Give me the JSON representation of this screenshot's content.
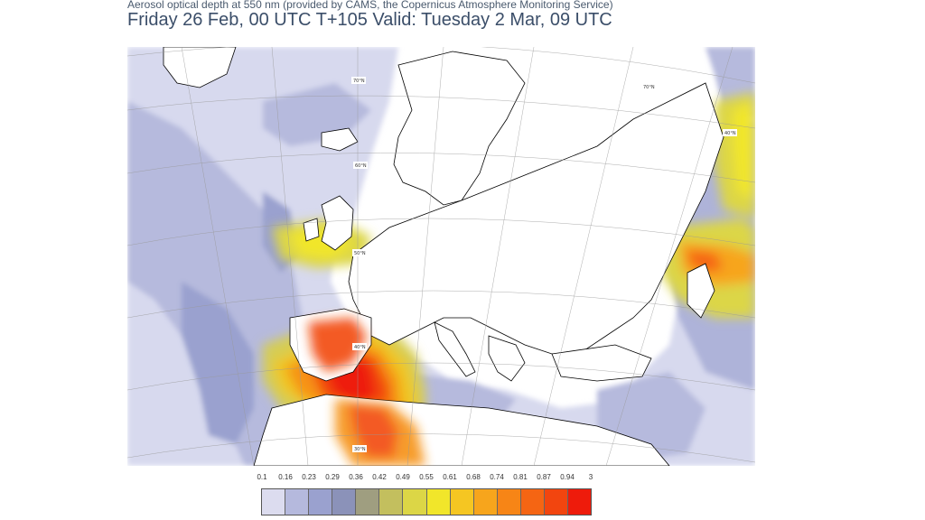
{
  "header": {
    "subtitle": "Aerosol optical depth at 550 nm (provided by CAMS, the Copernicus Atmosphere Monitoring Service)",
    "title": "Friday 26 Feb, 00 UTC T+105 Valid: Tuesday 2 Mar, 09 UTC"
  },
  "map": {
    "latitude_labels": [
      "70°N",
      "60°N",
      "50°N",
      "40°N",
      "30°N",
      "70°N",
      "40°N"
    ],
    "land_color": "#ffffff",
    "coast_color": "#000000",
    "grid_color": "#999999"
  },
  "legend": {
    "ticks": [
      "0.1",
      "0.16",
      "0.23",
      "0.29",
      "0.36",
      "0.42",
      "0.49",
      "0.55",
      "0.61",
      "0.68",
      "0.74",
      "0.81",
      "0.87",
      "0.94",
      "3"
    ],
    "colors": [
      "#dcdcef",
      "#b5b9dd",
      "#9aa1cf",
      "#8b92b9",
      "#9f9e80",
      "#c3bf5e",
      "#dcd646",
      "#f1e62a",
      "#f5c622",
      "#f7a51c",
      "#f78516",
      "#f56513",
      "#f2450f",
      "#ee1b0b"
    ]
  }
}
